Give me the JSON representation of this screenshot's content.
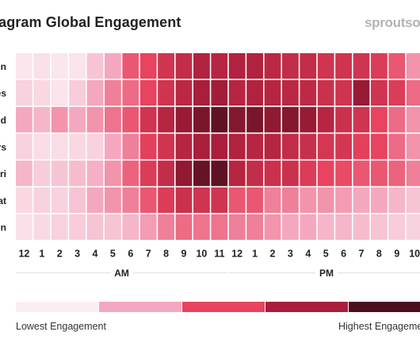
{
  "title": "tagram Global Engagement",
  "logo": "sproutsoc",
  "colors": {
    "levels": [
      "#fbeef2",
      "#f4a8bf",
      "#e8435f",
      "#a91e3a",
      "#4d0f1f"
    ]
  },
  "chart_data": {
    "type": "heatmap",
    "title": "tagram Global Engagement",
    "rows": [
      "n",
      "es",
      "d",
      "rs",
      "ri",
      "at",
      "n"
    ],
    "columns": [
      "12",
      "1",
      "2",
      "3",
      "4",
      "5",
      "6",
      "7",
      "8",
      "9",
      "10",
      "11",
      "12",
      "1",
      "2",
      "3",
      "4",
      "5",
      "6",
      "7",
      "8",
      "9",
      "10"
    ],
    "period_labels": [
      "AM",
      "PM"
    ],
    "values": [
      [
        0.03,
        0.05,
        0.03,
        0.04,
        0.15,
        0.25,
        0.45,
        0.5,
        0.6,
        0.65,
        0.72,
        0.7,
        0.72,
        0.72,
        0.68,
        0.65,
        0.65,
        0.6,
        0.6,
        0.6,
        0.55,
        0.45,
        0.3
      ],
      [
        0.1,
        0.08,
        0.04,
        0.12,
        0.25,
        0.35,
        0.4,
        0.5,
        0.6,
        0.68,
        0.75,
        0.77,
        0.7,
        0.72,
        0.7,
        0.68,
        0.67,
        0.62,
        0.6,
        0.8,
        0.6,
        0.55,
        0.4
      ],
      [
        0.25,
        0.2,
        0.3,
        0.25,
        0.3,
        0.38,
        0.45,
        0.6,
        0.7,
        0.8,
        0.88,
        0.95,
        0.85,
        0.88,
        0.82,
        0.85,
        0.8,
        0.7,
        0.62,
        0.6,
        0.5,
        0.4,
        0.3
      ],
      [
        0.1,
        0.06,
        0.06,
        0.08,
        0.1,
        0.25,
        0.35,
        0.52,
        0.6,
        0.7,
        0.75,
        0.75,
        0.72,
        0.7,
        0.7,
        0.65,
        0.63,
        0.58,
        0.58,
        0.52,
        0.5,
        0.4,
        0.3
      ],
      [
        0.2,
        0.12,
        0.15,
        0.18,
        0.22,
        0.3,
        0.42,
        0.55,
        0.65,
        0.82,
        0.93,
        0.95,
        0.7,
        0.65,
        0.62,
        0.62,
        0.55,
        0.5,
        0.48,
        0.45,
        0.45,
        0.42,
        0.35
      ],
      [
        0.08,
        0.1,
        0.1,
        0.15,
        0.25,
        0.3,
        0.35,
        0.45,
        0.55,
        0.62,
        0.6,
        0.6,
        0.45,
        0.45,
        0.35,
        0.35,
        0.3,
        0.3,
        0.28,
        0.25,
        0.25,
        0.2,
        0.15
      ],
      [
        0.05,
        0.07,
        0.1,
        0.12,
        0.15,
        0.15,
        0.2,
        0.28,
        0.35,
        0.4,
        0.38,
        0.38,
        0.35,
        0.35,
        0.3,
        0.25,
        0.25,
        0.2,
        0.2,
        0.18,
        0.15,
        0.12,
        0.1
      ]
    ],
    "value_range": [
      0,
      1
    ],
    "legend": {
      "low_label": "Lowest Engagement",
      "high_label": "Highest Engageme"
    }
  }
}
